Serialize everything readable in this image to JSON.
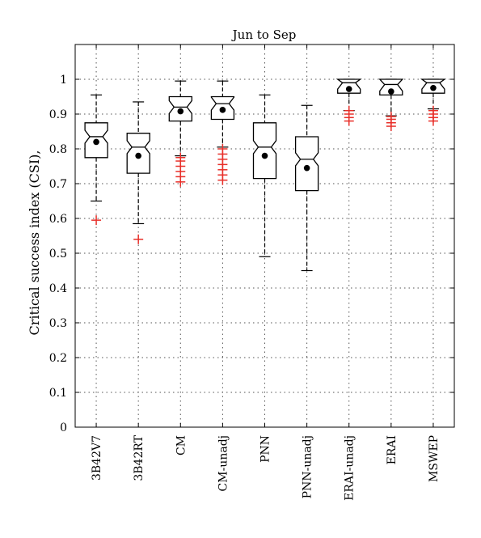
{
  "chart_data": {
    "type": "box",
    "title": "Jun to Sep",
    "ylabel": "Critical success index (CSI),",
    "xlabel": "",
    "ylim": [
      0,
      1.1
    ],
    "yticks": [
      0,
      0.1,
      0.2,
      0.3,
      0.4,
      0.5,
      0.6,
      0.7,
      0.8,
      0.9,
      1
    ],
    "grid": true,
    "notched": true,
    "categories": [
      "3B42V7",
      "3B42RT",
      "CM",
      "CM-unadj",
      "PNN",
      "PNN-unadj",
      "ERAI-unadj",
      "ERAI",
      "MSWEP"
    ],
    "boxes": [
      {
        "whisker_low": 0.65,
        "q1": 0.775,
        "median": 0.835,
        "q3": 0.875,
        "whisker_high": 0.955,
        "mean": 0.82,
        "outliers": [
          0.595
        ]
      },
      {
        "whisker_low": 0.585,
        "q1": 0.73,
        "median": 0.805,
        "q3": 0.845,
        "whisker_high": 0.935,
        "mean": 0.78,
        "outliers": [
          0.54
        ]
      },
      {
        "whisker_low": 0.78,
        "q1": 0.88,
        "median": 0.92,
        "q3": 0.95,
        "whisker_high": 0.995,
        "mean": 0.908,
        "outliers": [
          0.705,
          0.72,
          0.735,
          0.75,
          0.765,
          0.775
        ]
      },
      {
        "whisker_low": 0.805,
        "q1": 0.885,
        "median": 0.93,
        "q3": 0.95,
        "whisker_high": 0.995,
        "mean": 0.912,
        "outliers": [
          0.71,
          0.725,
          0.74,
          0.755,
          0.77,
          0.785,
          0.8
        ]
      },
      {
        "whisker_low": 0.49,
        "q1": 0.715,
        "median": 0.805,
        "q3": 0.875,
        "whisker_high": 0.955,
        "mean": 0.78,
        "outliers": []
      },
      {
        "whisker_low": 0.45,
        "q1": 0.68,
        "median": 0.77,
        "q3": 0.835,
        "whisker_high": 0.925,
        "mean": 0.745,
        "outliers": []
      },
      {
        "whisker_low": 0.91,
        "q1": 0.96,
        "median": 0.99,
        "q3": 1.0,
        "whisker_high": 1.0,
        "mean": 0.972,
        "outliers": [
          0.88,
          0.89,
          0.9,
          0.91
        ]
      },
      {
        "whisker_low": 0.895,
        "q1": 0.955,
        "median": 0.985,
        "q3": 1.0,
        "whisker_high": 1.0,
        "mean": 0.965,
        "outliers": [
          0.865,
          0.875,
          0.885,
          0.893
        ]
      },
      {
        "whisker_low": 0.915,
        "q1": 0.96,
        "median": 0.99,
        "q3": 1.0,
        "whisker_high": 1.0,
        "mean": 0.975,
        "outliers": [
          0.88,
          0.89,
          0.9,
          0.91
        ]
      }
    ],
    "colors": {
      "box": "#000000",
      "outlier": "#e8302a",
      "grid": "#555555"
    }
  }
}
